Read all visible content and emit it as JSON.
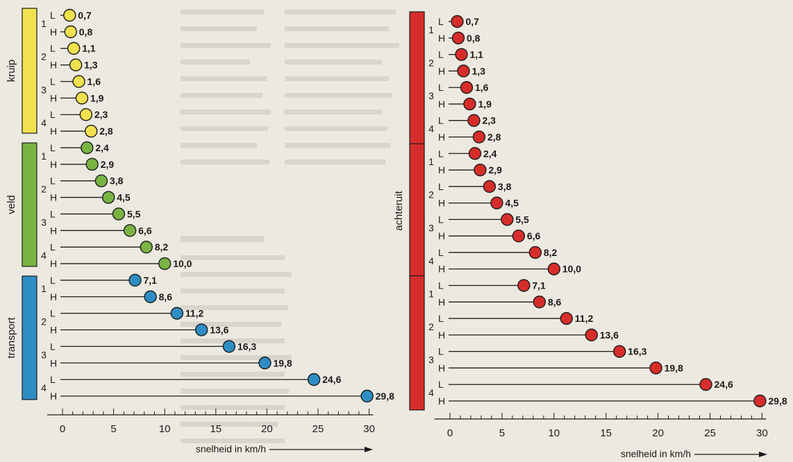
{
  "chart_data": [
    {
      "type": "lollipop",
      "xlabel": "snelheid in km/h",
      "xlim": [
        0,
        30
      ],
      "xticks": [
        0,
        5,
        10,
        15,
        20,
        25,
        30
      ],
      "gear_labels": [
        "1",
        "2",
        "3",
        "4"
      ],
      "range_labels": [
        "L",
        "H"
      ],
      "groups": [
        {
          "name": "kruip",
          "color": "#f2e14e",
          "values": [
            0.7,
            0.8,
            1.1,
            1.3,
            1.6,
            1.9,
            2.3,
            2.8
          ],
          "display": [
            "0,7",
            "0,8",
            "1,1",
            "1,3",
            "1,6",
            "1,9",
            "2,3",
            "2,8"
          ]
        },
        {
          "name": "veld",
          "color": "#79b443",
          "values": [
            2.4,
            2.9,
            3.8,
            4.5,
            5.5,
            6.6,
            8.2,
            10.0
          ],
          "display": [
            "2,4",
            "2,9",
            "3,8",
            "4,5",
            "5,5",
            "6,6",
            "8,2",
            "10,0"
          ]
        },
        {
          "name": "transport",
          "color": "#2e8ec4",
          "values": [
            7.1,
            8.6,
            11.2,
            13.6,
            16.3,
            19.8,
            24.6,
            29.8
          ],
          "display": [
            "7,1",
            "8,6",
            "11,2",
            "13,6",
            "16,3",
            "19,8",
            "24,6",
            "29,8"
          ]
        }
      ]
    },
    {
      "type": "lollipop",
      "xlabel": "snelheid in km/h",
      "xlim": [
        0,
        30
      ],
      "xticks": [
        0,
        5,
        10,
        15,
        20,
        25,
        30
      ],
      "gear_labels": [
        "1",
        "2",
        "3",
        "4"
      ],
      "range_labels": [
        "L",
        "H"
      ],
      "groups": [
        {
          "name": "",
          "color": "#d62d2b",
          "values": [
            0.7,
            0.8,
            1.1,
            1.3,
            1.6,
            1.9,
            2.3,
            2.8
          ],
          "display": [
            "0,7",
            "0,8",
            "1,1",
            "1,3",
            "1,6",
            "1,9",
            "2,3",
            "2,8"
          ]
        },
        {
          "name": "achteruit",
          "color": "#d62d2b",
          "values": [
            2.4,
            2.9,
            3.8,
            4.5,
            5.5,
            6.6,
            8.2,
            10.0
          ],
          "display": [
            "2,4",
            "2,9",
            "3,8",
            "4,5",
            "5,5",
            "6,6",
            "8,2",
            "10,0"
          ]
        },
        {
          "name": "",
          "color": "#d62d2b",
          "values": [
            7.1,
            8.6,
            11.2,
            13.6,
            16.3,
            19.8,
            24.6,
            29.8
          ],
          "display": [
            "7,1",
            "8,6",
            "11,2",
            "13,6",
            "16,3",
            "19,8",
            "24,6",
            "29,8"
          ]
        }
      ]
    }
  ]
}
